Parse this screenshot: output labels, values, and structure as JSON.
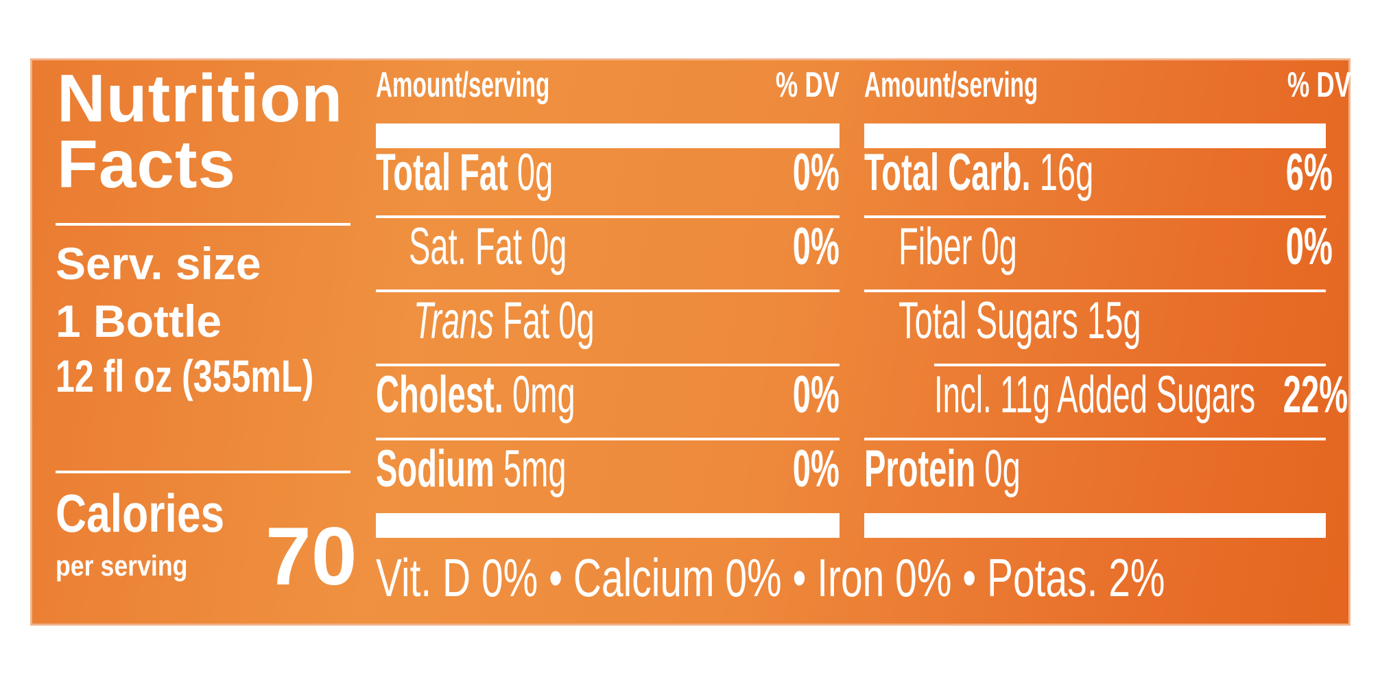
{
  "panel": {
    "title_line1": "Nutrition",
    "title_line2": "Facts",
    "serving_label": "Serv. size",
    "serving_line2": "1 Bottle",
    "serving_line3": "12 fl oz (355mL)",
    "calories_label": "Calories",
    "calories_sub": "per serving",
    "calories_value": "70"
  },
  "column_left": {
    "amount_header": "Amount/serving",
    "dv_header": "% DV",
    "rows": [
      {
        "name": "Total Fat",
        "amount": "0g",
        "dv": "0%"
      },
      {
        "name": "Sat. Fat",
        "amount": "0g",
        "dv": "0%"
      },
      {
        "name": "Trans",
        "name_suffix": "Fat",
        "amount": "0g",
        "dv": ""
      },
      {
        "name": "Cholest.",
        "amount": "0mg",
        "dv": "0%"
      },
      {
        "name": "Sodium",
        "amount": "5mg",
        "dv": "0%"
      }
    ]
  },
  "column_right": {
    "amount_header": "Amount/serving",
    "dv_header": "% DV",
    "rows": [
      {
        "name": "Total Carb.",
        "amount": "16g",
        "dv": "6%"
      },
      {
        "name": "Fiber",
        "amount": "0g",
        "dv": "0%"
      },
      {
        "name": "Total Sugars",
        "amount": "15g",
        "dv": ""
      },
      {
        "name": "Incl. 11g Added Sugars",
        "amount": "",
        "dv": "22%"
      },
      {
        "name": "Protein",
        "amount": "0g",
        "dv": ""
      }
    ]
  },
  "footer": {
    "text": "Vit. D 0% • Calcium 0% • Iron 0% • Potas. 2%"
  },
  "colors": {
    "background": "#ee8a3c",
    "text": "#ffffff"
  }
}
